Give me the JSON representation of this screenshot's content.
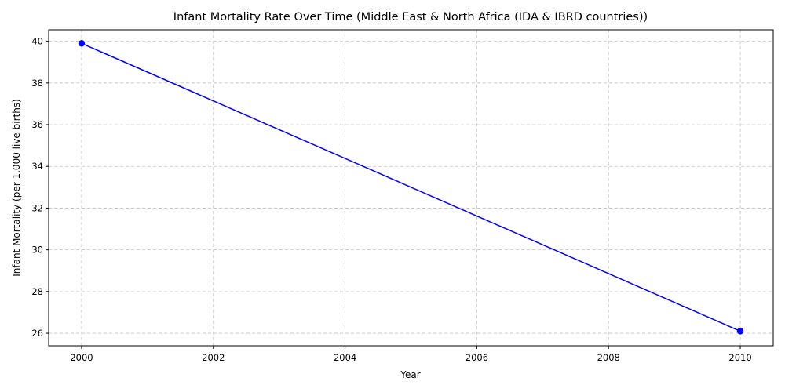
{
  "chart_data": {
    "type": "line",
    "title": "Infant Mortality Rate Over Time (Middle East & North Africa (IDA & IBRD countries))",
    "xlabel": "Year",
    "ylabel": "Infant Mortality (per 1,000 live births)",
    "xlim": [
      1999.5,
      2010.5
    ],
    "ylim": [
      25.4,
      40.55
    ],
    "xticks": [
      2000,
      2002,
      2004,
      2006,
      2008,
      2010
    ],
    "yticks": [
      26,
      28,
      30,
      32,
      34,
      36,
      38,
      40
    ],
    "grid": true,
    "series": [
      {
        "x": [
          2000,
          2010
        ],
        "y": [
          39.9,
          26.1
        ],
        "color": "#0000ff",
        "marker": "circle"
      }
    ]
  }
}
